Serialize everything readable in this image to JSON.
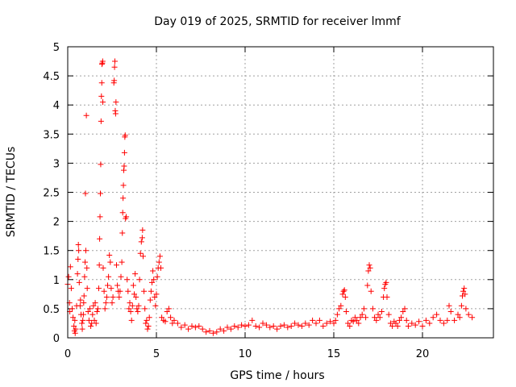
{
  "chart_data": {
    "type": "scatter",
    "title": "Day 019 of 2025, SRMTID for receiver lmmf",
    "xlabel": "GPS time / hours",
    "ylabel": "SRMTID / TECUs",
    "xlim": [
      0,
      24
    ],
    "ylim": [
      0,
      5
    ],
    "grid": true,
    "marker": "+",
    "color": "#ff0000",
    "xticks": [
      0,
      5,
      10,
      15,
      20
    ],
    "xtick_labels": [
      "0",
      "5",
      "10",
      "15",
      "20"
    ],
    "yticks": [
      0,
      0.5,
      1,
      1.5,
      2,
      2.5,
      3,
      3.5,
      4,
      4.5,
      5
    ],
    "ytick_labels": [
      "0",
      "0.5",
      "1",
      "1.5",
      "2",
      "2.5",
      "3",
      "3.5",
      "4",
      "4.5",
      "5"
    ],
    "series": [
      {
        "name": "SRMTID",
        "points": [
          [
            0.0,
            0.92
          ],
          [
            0.05,
            1.05
          ],
          [
            0.1,
            0.6
          ],
          [
            0.12,
            0.45
          ],
          [
            0.15,
            1.22
          ],
          [
            0.2,
            0.85
          ],
          [
            0.25,
            0.5
          ],
          [
            0.3,
            0.35
          ],
          [
            0.35,
            0.2
          ],
          [
            0.38,
            0.12
          ],
          [
            0.4,
            0.3
          ],
          [
            0.42,
            0.08
          ],
          [
            0.45,
            0.15
          ],
          [
            0.5,
            0.55
          ],
          [
            0.55,
            1.1
          ],
          [
            0.58,
            1.35
          ],
          [
            0.6,
            1.6
          ],
          [
            0.62,
            1.5
          ],
          [
            0.65,
            0.95
          ],
          [
            0.7,
            0.55
          ],
          [
            0.72,
            0.65
          ],
          [
            0.75,
            0.4
          ],
          [
            0.8,
            0.25
          ],
          [
            0.82,
            0.15
          ],
          [
            0.85,
            0.3
          ],
          [
            0.88,
            0.4
          ],
          [
            0.9,
            0.6
          ],
          [
            0.92,
            0.72
          ],
          [
            0.95,
            1.05
          ],
          [
            0.98,
            1.3
          ],
          [
            1.0,
            2.48
          ],
          [
            1.02,
            1.5
          ],
          [
            1.05,
            3.82
          ],
          [
            1.08,
            1.2
          ],
          [
            1.1,
            0.85
          ],
          [
            1.15,
            0.45
          ],
          [
            1.2,
            0.3
          ],
          [
            1.25,
            0.5
          ],
          [
            1.3,
            0.2
          ],
          [
            1.35,
            0.25
          ],
          [
            1.4,
            0.4
          ],
          [
            1.45,
            0.55
          ],
          [
            1.5,
            0.3
          ],
          [
            1.55,
            0.6
          ],
          [
            1.6,
            0.25
          ],
          [
            1.65,
            0.45
          ],
          [
            1.7,
            0.5
          ],
          [
            1.75,
            0.85
          ],
          [
            1.78,
            1.25
          ],
          [
            1.8,
            1.7
          ],
          [
            1.82,
            2.08
          ],
          [
            1.84,
            2.48
          ],
          [
            1.86,
            2.98
          ],
          [
            1.88,
            3.72
          ],
          [
            1.9,
            4.15
          ],
          [
            1.92,
            4.38
          ],
          [
            1.93,
            4.7
          ],
          [
            1.95,
            4.72
          ],
          [
            1.97,
            4.75
          ],
          [
            1.98,
            4.05
          ],
          [
            2.0,
            1.2
          ],
          [
            2.05,
            0.8
          ],
          [
            2.1,
            0.5
          ],
          [
            2.15,
            0.6
          ],
          [
            2.2,
            0.7
          ],
          [
            2.25,
            0.9
          ],
          [
            2.3,
            1.05
          ],
          [
            2.35,
            1.42
          ],
          [
            2.4,
            1.3
          ],
          [
            2.45,
            0.85
          ],
          [
            2.5,
            0.6
          ],
          [
            2.55,
            0.7
          ],
          [
            2.6,
            4.38
          ],
          [
            2.62,
            4.42
          ],
          [
            2.64,
            4.65
          ],
          [
            2.66,
            4.75
          ],
          [
            2.68,
            3.9
          ],
          [
            2.7,
            3.85
          ],
          [
            2.72,
            4.05
          ],
          [
            2.75,
            1.25
          ],
          [
            2.8,
            0.9
          ],
          [
            2.85,
            0.8
          ],
          [
            2.9,
            0.7
          ],
          [
            2.95,
            0.8
          ],
          [
            3.0,
            1.05
          ],
          [
            3.05,
            1.3
          ],
          [
            3.08,
            1.8
          ],
          [
            3.1,
            2.15
          ],
          [
            3.12,
            2.4
          ],
          [
            3.14,
            2.62
          ],
          [
            3.16,
            2.88
          ],
          [
            3.18,
            2.95
          ],
          [
            3.2,
            3.18
          ],
          [
            3.22,
            3.45
          ],
          [
            3.24,
            3.48
          ],
          [
            3.26,
            2.05
          ],
          [
            3.3,
            2.08
          ],
          [
            3.35,
            1.0
          ],
          [
            3.4,
            0.8
          ],
          [
            3.45,
            0.5
          ],
          [
            3.5,
            0.6
          ],
          [
            3.55,
            0.45
          ],
          [
            3.6,
            0.3
          ],
          [
            3.65,
            0.55
          ],
          [
            3.7,
            0.9
          ],
          [
            3.75,
            0.75
          ],
          [
            3.8,
            1.1
          ],
          [
            3.85,
            0.7
          ],
          [
            3.9,
            0.5
          ],
          [
            3.95,
            0.45
          ],
          [
            4.0,
            0.55
          ],
          [
            4.05,
            1.0
          ],
          [
            4.1,
            1.45
          ],
          [
            4.15,
            1.65
          ],
          [
            4.2,
            1.72
          ],
          [
            4.22,
            1.85
          ],
          [
            4.25,
            1.4
          ],
          [
            4.3,
            0.8
          ],
          [
            4.35,
            0.5
          ],
          [
            4.4,
            0.25
          ],
          [
            4.45,
            0.3
          ],
          [
            4.5,
            0.15
          ],
          [
            4.55,
            0.2
          ],
          [
            4.6,
            0.35
          ],
          [
            4.65,
            0.65
          ],
          [
            4.7,
            0.8
          ],
          [
            4.75,
            0.95
          ],
          [
            4.8,
            1.15
          ],
          [
            4.85,
            1.0
          ],
          [
            4.9,
            0.7
          ],
          [
            4.95,
            0.55
          ],
          [
            5.0,
            0.75
          ],
          [
            5.05,
            1.05
          ],
          [
            5.1,
            1.2
          ],
          [
            5.15,
            1.3
          ],
          [
            5.2,
            1.4
          ],
          [
            5.25,
            1.2
          ],
          [
            5.3,
            0.35
          ],
          [
            5.4,
            0.3
          ],
          [
            5.5,
            0.28
          ],
          [
            5.6,
            0.45
          ],
          [
            5.7,
            0.5
          ],
          [
            5.8,
            0.35
          ],
          [
            5.9,
            0.25
          ],
          [
            6.0,
            0.3
          ],
          [
            6.2,
            0.25
          ],
          [
            6.4,
            0.18
          ],
          [
            6.6,
            0.22
          ],
          [
            6.8,
            0.15
          ],
          [
            7.0,
            0.2
          ],
          [
            7.2,
            0.18
          ],
          [
            7.4,
            0.2
          ],
          [
            7.6,
            0.15
          ],
          [
            7.8,
            0.1
          ],
          [
            8.0,
            0.12
          ],
          [
            8.2,
            0.08
          ],
          [
            8.4,
            0.1
          ],
          [
            8.6,
            0.15
          ],
          [
            8.8,
            0.12
          ],
          [
            9.0,
            0.18
          ],
          [
            9.2,
            0.15
          ],
          [
            9.4,
            0.2
          ],
          [
            9.6,
            0.18
          ],
          [
            9.8,
            0.22
          ],
          [
            10.0,
            0.2
          ],
          [
            10.2,
            0.22
          ],
          [
            10.4,
            0.3
          ],
          [
            10.6,
            0.2
          ],
          [
            10.8,
            0.18
          ],
          [
            11.0,
            0.25
          ],
          [
            11.2,
            0.22
          ],
          [
            11.4,
            0.18
          ],
          [
            11.6,
            0.2
          ],
          [
            11.8,
            0.15
          ],
          [
            12.0,
            0.2
          ],
          [
            12.2,
            0.22
          ],
          [
            12.4,
            0.18
          ],
          [
            12.6,
            0.2
          ],
          [
            12.8,
            0.25
          ],
          [
            13.0,
            0.22
          ],
          [
            13.2,
            0.2
          ],
          [
            13.4,
            0.25
          ],
          [
            13.6,
            0.22
          ],
          [
            13.8,
            0.3
          ],
          [
            14.0,
            0.25
          ],
          [
            14.2,
            0.3
          ],
          [
            14.4,
            0.2
          ],
          [
            14.6,
            0.25
          ],
          [
            14.8,
            0.28
          ],
          [
            15.0,
            0.25
          ],
          [
            15.1,
            0.3
          ],
          [
            15.2,
            0.4
          ],
          [
            15.3,
            0.5
          ],
          [
            15.4,
            0.55
          ],
          [
            15.5,
            0.75
          ],
          [
            15.55,
            0.8
          ],
          [
            15.6,
            0.82
          ],
          [
            15.65,
            0.7
          ],
          [
            15.7,
            0.45
          ],
          [
            15.8,
            0.25
          ],
          [
            15.9,
            0.2
          ],
          [
            16.0,
            0.3
          ],
          [
            16.1,
            0.28
          ],
          [
            16.2,
            0.35
          ],
          [
            16.3,
            0.3
          ],
          [
            16.4,
            0.25
          ],
          [
            16.5,
            0.35
          ],
          [
            16.6,
            0.4
          ],
          [
            16.7,
            0.5
          ],
          [
            16.8,
            0.35
          ],
          [
            16.9,
            0.9
          ],
          [
            16.95,
            1.15
          ],
          [
            17.0,
            1.25
          ],
          [
            17.05,
            1.2
          ],
          [
            17.1,
            0.8
          ],
          [
            17.2,
            0.5
          ],
          [
            17.3,
            0.35
          ],
          [
            17.4,
            0.3
          ],
          [
            17.5,
            0.4
          ],
          [
            17.6,
            0.35
          ],
          [
            17.7,
            0.45
          ],
          [
            17.8,
            0.7
          ],
          [
            17.85,
            0.85
          ],
          [
            17.9,
            0.92
          ],
          [
            17.95,
            0.95
          ],
          [
            18.0,
            0.7
          ],
          [
            18.1,
            0.4
          ],
          [
            18.2,
            0.25
          ],
          [
            18.3,
            0.2
          ],
          [
            18.4,
            0.28
          ],
          [
            18.5,
            0.25
          ],
          [
            18.6,
            0.2
          ],
          [
            18.7,
            0.3
          ],
          [
            18.8,
            0.35
          ],
          [
            18.9,
            0.45
          ],
          [
            19.0,
            0.5
          ],
          [
            19.1,
            0.3
          ],
          [
            19.2,
            0.2
          ],
          [
            19.4,
            0.25
          ],
          [
            19.6,
            0.22
          ],
          [
            19.8,
            0.28
          ],
          [
            20.0,
            0.2
          ],
          [
            20.2,
            0.3
          ],
          [
            20.4,
            0.25
          ],
          [
            20.6,
            0.35
          ],
          [
            20.8,
            0.4
          ],
          [
            21.0,
            0.3
          ],
          [
            21.2,
            0.25
          ],
          [
            21.4,
            0.3
          ],
          [
            21.5,
            0.55
          ],
          [
            21.6,
            0.45
          ],
          [
            21.8,
            0.3
          ],
          [
            22.0,
            0.4
          ],
          [
            22.1,
            0.35
          ],
          [
            22.2,
            0.55
          ],
          [
            22.25,
            0.72
          ],
          [
            22.3,
            0.8
          ],
          [
            22.35,
            0.85
          ],
          [
            22.4,
            0.75
          ],
          [
            22.45,
            0.5
          ],
          [
            22.6,
            0.4
          ],
          [
            22.8,
            0.35
          ]
        ]
      }
    ]
  }
}
